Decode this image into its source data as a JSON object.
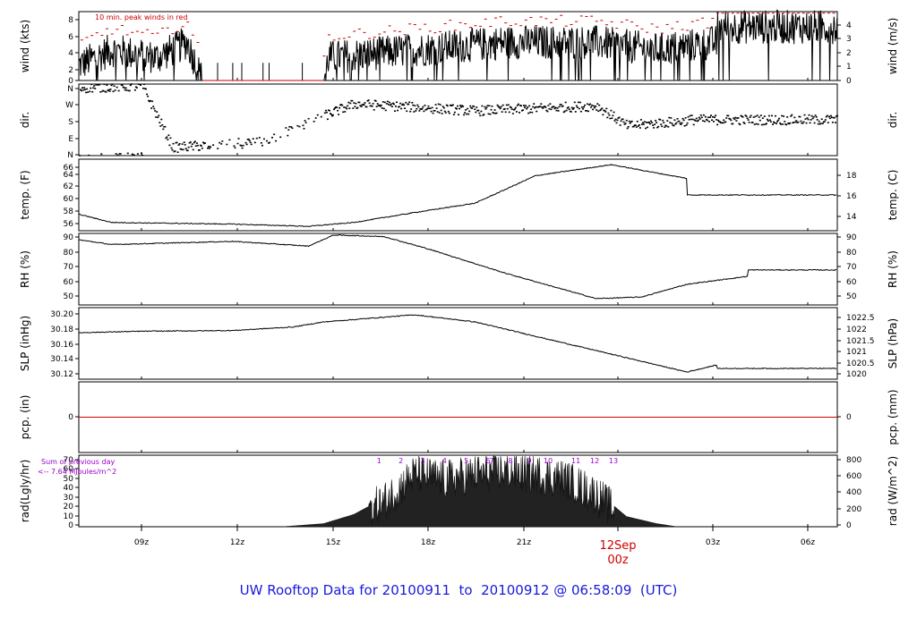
{
  "footer_title": "UW Rooftop Data for 20100911  to  20100912 @ 06:58:09  (UTC)",
  "colors": {
    "axes": "#000000",
    "peak": "#cc0000",
    "zero_line": "#cc0000",
    "purple": "#9900cc",
    "title": "#1a1adb",
    "day_mark": "#cc0000"
  },
  "time_axis": {
    "ticks": [
      "09z",
      "12z",
      "15z",
      "18z",
      "21z",
      "00z",
      "03z",
      "06z"
    ],
    "day_label": "12Sep",
    "day_hour_label": "00z",
    "day_tick_index": 5
  },
  "chart_data": [
    {
      "id": "wind",
      "type": "line",
      "ylabel": "wind (kts)",
      "ylabel_right": "wind (m/s)",
      "ylim": [
        0,
        9
      ],
      "yticks": [
        "0",
        "2",
        "4",
        "6",
        "8"
      ],
      "y2lim": [
        0,
        4.63
      ],
      "y2ticks": [
        "0",
        "1",
        "2",
        "3",
        "4"
      ],
      "annotation": "10 min. peak winds in red",
      "series": [
        {
          "name": "10 min. peak winds in red",
          "values": []
        }
      ],
      "approx_profile": [
        {
          "t": "06:55z",
          "v": 2
        },
        {
          "t": "08:00z",
          "v": 4
        },
        {
          "t": "09:30z",
          "v": 3
        },
        {
          "t": "10:30z",
          "v": 5
        },
        {
          "t": "11:00z",
          "v": 0
        },
        {
          "t": "15:00z",
          "v": 0
        },
        {
          "t": "15:10z",
          "v": 3
        },
        {
          "t": "18:00z",
          "v": 4
        },
        {
          "t": "21:00z",
          "v": 5
        },
        {
          "t": "00:00z",
          "v": 5
        },
        {
          "t": "02:00z",
          "v": 4
        },
        {
          "t": "04:00z",
          "v": 5
        },
        {
          "t": "06:58z",
          "v": 7
        }
      ]
    },
    {
      "id": "dir",
      "type": "scatter",
      "ylabel": "dir.",
      "ylabel_right": "dir.",
      "ylim": [
        0,
        360
      ],
      "yticks": [
        "N",
        "E",
        "S",
        "W",
        "N"
      ],
      "approx_profile": [
        {
          "t": "06:55z",
          "v": 340
        },
        {
          "t": "09:00z",
          "v": 350
        },
        {
          "t": "10:00z",
          "v": 40
        },
        {
          "t": "13:00z",
          "v": 70
        },
        {
          "t": "15:00z",
          "v": 200
        },
        {
          "t": "16:00z",
          "v": 260
        },
        {
          "t": "20:00z",
          "v": 225
        },
        {
          "t": "00:00z",
          "v": 250
        },
        {
          "t": "01:00z",
          "v": 150
        },
        {
          "t": "03:00z",
          "v": 175
        },
        {
          "t": "06:58z",
          "v": 180
        }
      ]
    },
    {
      "id": "temp",
      "type": "line",
      "ylabel": "temp. (F)",
      "ylabel_right": "temp. (C)",
      "ylim": [
        54.5,
        67.5
      ],
      "yticks": [
        "56",
        "58",
        "60",
        "62",
        "64",
        "66"
      ],
      "y2lim": [
        12.5,
        19.7
      ],
      "y2ticks": [
        "14",
        "16",
        "18"
      ],
      "approx_profile": [
        {
          "t": "06:55z",
          "v": 57.5
        },
        {
          "t": "08:00z",
          "v": 56
        },
        {
          "t": "12:00z",
          "v": 55.7
        },
        {
          "t": "14:30z",
          "v": 55.3
        },
        {
          "t": "16:00z",
          "v": 56
        },
        {
          "t": "18:00z",
          "v": 57.8
        },
        {
          "t": "20:00z",
          "v": 59.5
        },
        {
          "t": "22:00z",
          "v": 64.5
        },
        {
          "t": "00:30z",
          "v": 66.5
        },
        {
          "t": "03:00z",
          "v": 64
        },
        {
          "t": "06:58z",
          "v": 61
        }
      ]
    },
    {
      "id": "rh",
      "type": "line",
      "ylabel": "RH (%)",
      "ylabel_right": "RH (%)",
      "ylim": [
        45,
        90
      ],
      "yticks": [
        "50",
        "60",
        "70",
        "80",
        "90"
      ],
      "y2ticks": [
        "50",
        "60",
        "70",
        "80",
        "90"
      ],
      "approx_profile": [
        {
          "t": "06:55z",
          "v": 86
        },
        {
          "t": "08:00z",
          "v": 83
        },
        {
          "t": "12:00z",
          "v": 85
        },
        {
          "t": "14:30z",
          "v": 82
        },
        {
          "t": "15:20z",
          "v": 89
        },
        {
          "t": "17:00z",
          "v": 88
        },
        {
          "t": "18:30z",
          "v": 80
        },
        {
          "t": "21:00z",
          "v": 65
        },
        {
          "t": "00:00z",
          "v": 49
        },
        {
          "t": "01:30z",
          "v": 50
        },
        {
          "t": "03:00z",
          "v": 58
        },
        {
          "t": "05:00z",
          "v": 63
        },
        {
          "t": "06:58z",
          "v": 67
        }
      ]
    },
    {
      "id": "slp",
      "type": "line",
      "ylabel": "SLP (inHg)",
      "ylabel_right": "SLP (hPa)",
      "ylim": [
        30.11,
        30.21
      ],
      "yticks": [
        "30.12",
        "30.14",
        "30.16",
        "30.18",
        "30.20"
      ],
      "y2lim": [
        1019.6,
        1022.9
      ],
      "y2ticks": [
        "1020",
        "1020.5",
        "1021",
        "1021.5",
        "1022",
        "1022.5"
      ],
      "approx_profile": [
        {
          "t": "06:55z",
          "v": 30.175
        },
        {
          "t": "09:00z",
          "v": 30.177
        },
        {
          "t": "12:00z",
          "v": 30.178
        },
        {
          "t": "14:00z",
          "v": 30.183
        },
        {
          "t": "15:00z",
          "v": 30.19
        },
        {
          "t": "18:00z",
          "v": 30.2
        },
        {
          "t": "20:00z",
          "v": 30.19
        },
        {
          "t": "23:00z",
          "v": 30.16
        },
        {
          "t": "01:30z",
          "v": 30.135
        },
        {
          "t": "03:00z",
          "v": 30.12
        },
        {
          "t": "04:00z",
          "v": 30.13
        },
        {
          "t": "06:58z",
          "v": 30.125
        }
      ]
    },
    {
      "id": "pcp",
      "type": "line",
      "ylabel": "pcp. (in)",
      "ylabel_right": "pcp. (mm)",
      "ylim": [
        -1,
        1
      ],
      "yticks": [
        "0"
      ],
      "y2ticks": [
        "0"
      ],
      "series": [
        {
          "values": [
            0
          ]
        }
      ]
    },
    {
      "id": "rad",
      "type": "area",
      "ylabel": "rad(Lgly/hr)",
      "ylabel_right": "rad (W/m^2)",
      "ylim": [
        0,
        70
      ],
      "yticks": [
        "0",
        "10",
        "20",
        "30",
        "40",
        "50",
        "60",
        "70"
      ],
      "y2lim": [
        0,
        814
      ],
      "y2ticks": [
        "0",
        "200",
        "400",
        "600",
        "800"
      ],
      "annotation_line1": "Sum of previous day",
      "annotation_line2": "<-- 7.64 MJoules/m^2",
      "hour_marks": [
        "1",
        "2",
        "3",
        "4",
        "5",
        "6",
        "7",
        "8",
        "9",
        "10",
        "11",
        "12",
        "13"
      ],
      "approx_profile": [
        {
          "t": "13:40z",
          "v": 0
        },
        {
          "t": "15:00z",
          "v": 3
        },
        {
          "t": "16:00z",
          "v": 12
        },
        {
          "t": "17:00z",
          "v": 28
        },
        {
          "t": "18:00z",
          "v": 55
        },
        {
          "t": "19:00z",
          "v": 50
        },
        {
          "t": "20:00z",
          "v": 55
        },
        {
          "t": "21:00z",
          "v": 58
        },
        {
          "t": "22:00z",
          "v": 55
        },
        {
          "t": "23:00z",
          "v": 50
        },
        {
          "t": "00:00z",
          "v": 35
        },
        {
          "t": "01:00z",
          "v": 10
        },
        {
          "t": "02:00z",
          "v": 3
        },
        {
          "t": "02:40z",
          "v": 0
        }
      ]
    }
  ]
}
